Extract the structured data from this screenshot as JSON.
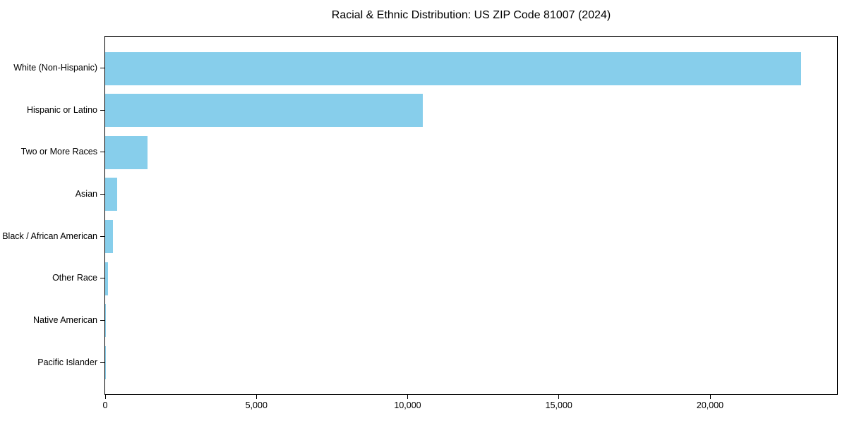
{
  "chart_data": {
    "type": "bar",
    "orientation": "horizontal",
    "title": "Racial & Ethnic Distribution: US ZIP Code 81007 (2024)",
    "categories": [
      "White (Non-Hispanic)",
      "Hispanic or Latino",
      "Two or More Races",
      "Asian",
      "Black / African American",
      "Other Race",
      "Native American",
      "Pacific Islander"
    ],
    "values": [
      23000,
      10500,
      1400,
      400,
      250,
      100,
      25,
      5
    ],
    "xlabel": "",
    "ylabel": "",
    "xlim": [
      0,
      24200
    ],
    "xticks": [
      {
        "value": 0,
        "label": "0"
      },
      {
        "value": 5000,
        "label": "5,000"
      },
      {
        "value": 10000,
        "label": "10,000"
      },
      {
        "value": 15000,
        "label": "15,000"
      },
      {
        "value": 20000,
        "label": "20,000"
      }
    ],
    "grid": false,
    "legend": null,
    "bar_color": "#87CEEB",
    "axis_color": "#000000",
    "background": "#FFFFFF"
  }
}
